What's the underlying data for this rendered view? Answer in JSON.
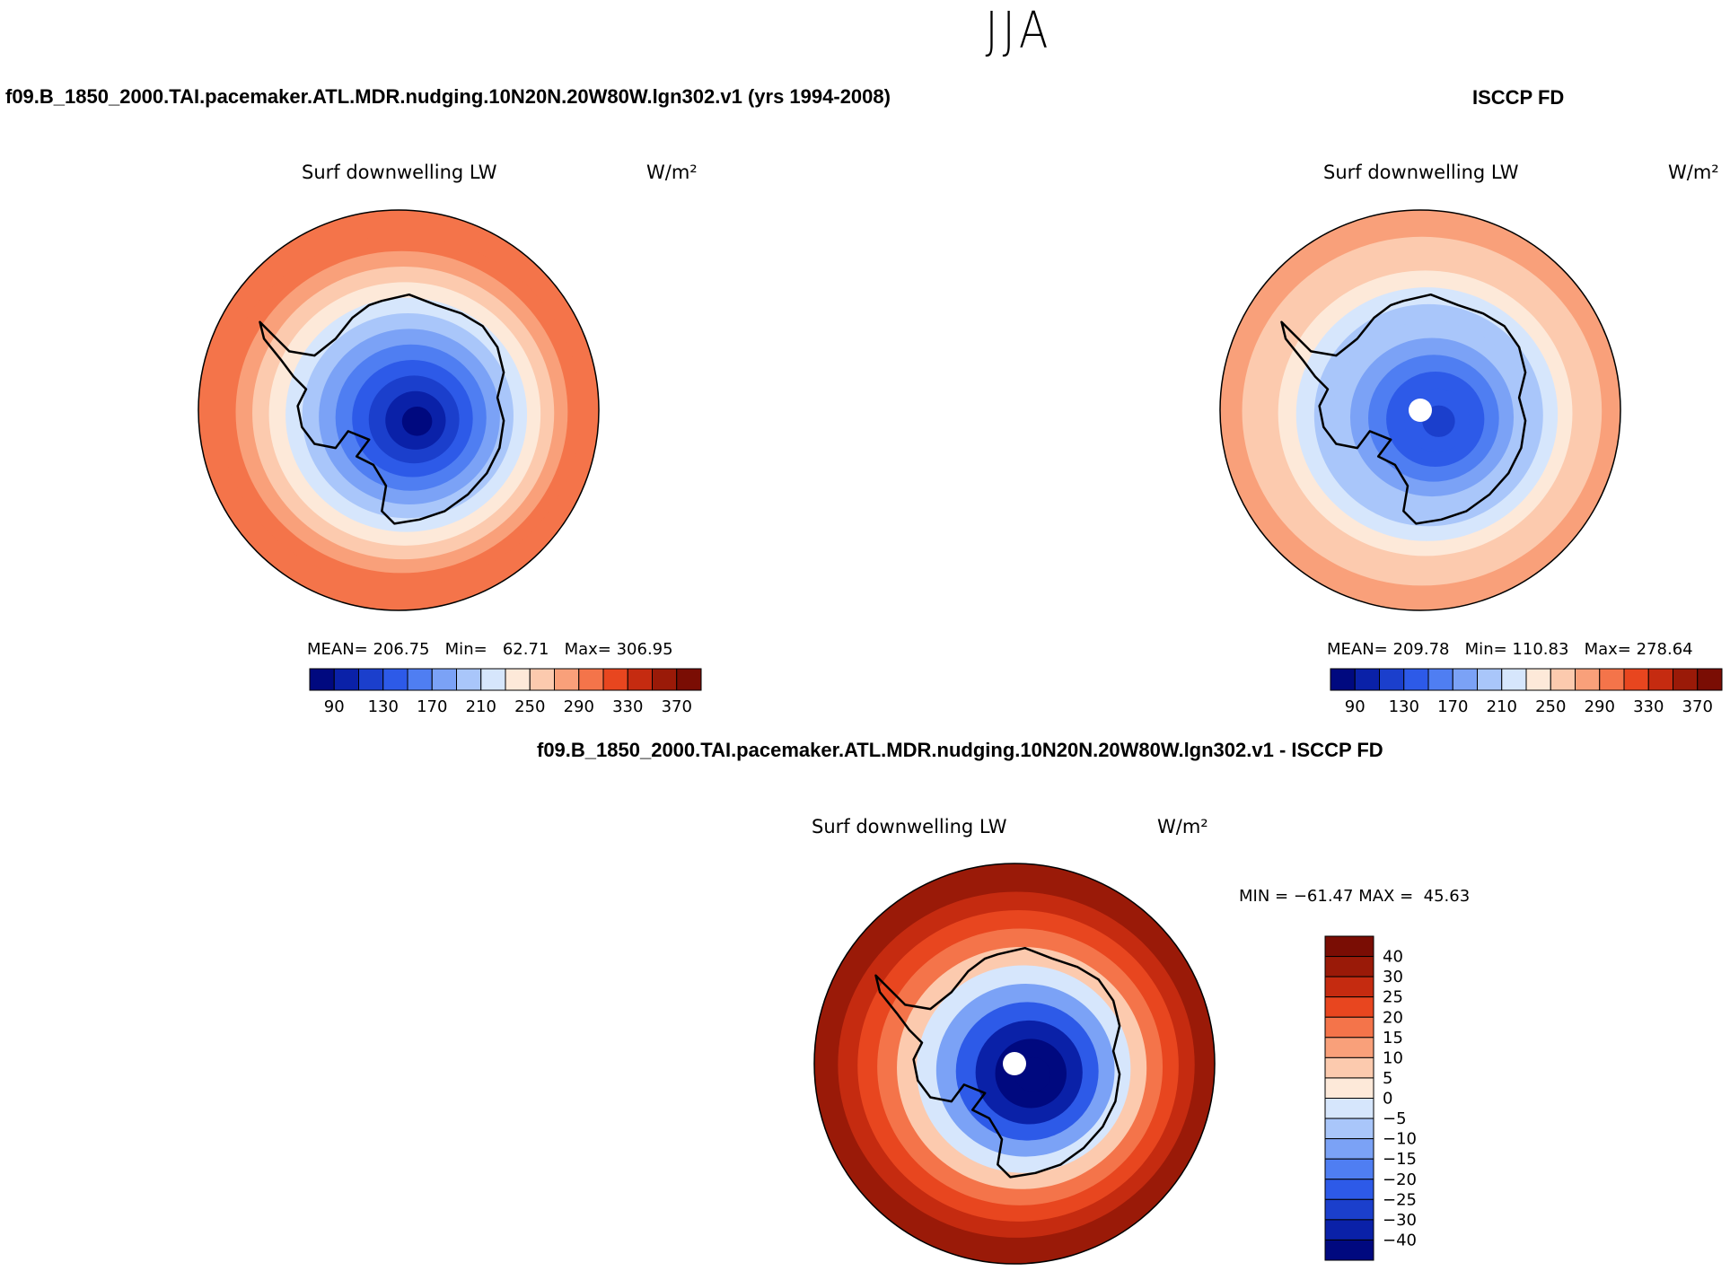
{
  "title": "JJA",
  "panels": {
    "left": {
      "case_title": "f09.B_1850_2000.TAI.pacemaker.ATL.MDR.nudging.10N20N.20W80W.lgn302.v1 (yrs 1994-2008)",
      "variable": "Surf downwelling LW",
      "units": "W/m²",
      "stats": {
        "mean_label": "MEAN=",
        "mean": "206.75",
        "min_label": "Min=",
        "min": "62.71",
        "max_label": "Max=",
        "max": "306.95"
      }
    },
    "right": {
      "case_title": "ISCCP FD",
      "variable": "Surf downwelling LW",
      "units": "W/m²",
      "stats": {
        "mean_label": "MEAN=",
        "mean": "209.78",
        "min_label": "Min=",
        "min": "110.83",
        "max_label": "Max=",
        "max": "278.64"
      }
    },
    "diff": {
      "case_title": "f09.B_1850_2000.TAI.pacemaker.ATL.MDR.nudging.10N20N.20W80W.lgn302.v1 - ISCCP FD",
      "variable": "Surf downwelling LW",
      "units": "W/m²",
      "stats": {
        "min_label": "MIN =",
        "min": "−61.47",
        "max_label": "MAX =",
        "max": "45.63"
      }
    }
  },
  "colors": {
    "abs_scale": [
      "#00097f",
      "#0a21a8",
      "#1b3fcc",
      "#2d5ae8",
      "#4f7ef2",
      "#7ba2f6",
      "#a9c6fa",
      "#d6e6fc",
      "#fde9d9",
      "#fccaae",
      "#f9a07a",
      "#f4744a",
      "#e8461f",
      "#c52b10",
      "#9a1a08",
      "#7a0d04"
    ],
    "diff_scale": [
      "#00097f",
      "#0a21a8",
      "#1b3fcc",
      "#2d5ae8",
      "#4f7ef2",
      "#7ba2f6",
      "#a9c6fa",
      "#d6e6fc",
      "#fde9d9",
      "#fccaae",
      "#f9a07a",
      "#f4744a",
      "#e8461f",
      "#c52b10",
      "#9a1a08",
      "#7a0d04"
    ],
    "land_outline": "#000000",
    "pole_hole": "#ffffff"
  },
  "chart_data": [
    {
      "type": "heatmap",
      "title": "f09.B_1850_2000.TAI.pacemaker.ATL.MDR.nudging.10N20N.20W80W.lgn302.v1 (yrs 1994-2008)",
      "projection": "south polar stereographic",
      "variable": "Surf downwelling LW",
      "units": "W/m²",
      "colorbar_levels": [
        90,
        110,
        130,
        150,
        170,
        190,
        210,
        230,
        250,
        270,
        290,
        310,
        330,
        350,
        370
      ],
      "colorbar_tick_labels": [
        "90",
        "130",
        "170",
        "210",
        "250",
        "290",
        "330",
        "370"
      ],
      "mean": 206.75,
      "min": 62.71,
      "max": 306.95,
      "rings_ocean_to_pole": [
        300,
        290,
        280,
        260,
        240,
        220,
        200,
        180,
        160,
        140,
        120,
        100,
        80
      ]
    },
    {
      "type": "heatmap",
      "title": "ISCCP FD",
      "projection": "south polar stereographic",
      "variable": "Surf downwelling LW",
      "units": "W/m²",
      "colorbar_levels": [
        90,
        110,
        130,
        150,
        170,
        190,
        210,
        230,
        250,
        270,
        290,
        310,
        330,
        350,
        370
      ],
      "colorbar_tick_labels": [
        "90",
        "130",
        "170",
        "210",
        "250",
        "290",
        "330",
        "370"
      ],
      "mean": 209.78,
      "min": 110.83,
      "max": 278.64,
      "rings_ocean_to_pole": [
        270,
        260,
        250,
        235,
        220,
        205,
        190,
        175,
        160,
        145,
        130,
        120
      ]
    },
    {
      "type": "heatmap",
      "title": "f09.B_1850_2000.TAI.pacemaker.ATL.MDR.nudging.10N20N.20W80W.lgn302.v1 - ISCCP FD",
      "projection": "south polar stereographic",
      "variable": "Surf downwelling LW",
      "units": "W/m²",
      "colorbar_levels": [
        -40,
        -30,
        -25,
        -20,
        -15,
        -10,
        -5,
        0,
        5,
        10,
        15,
        20,
        25,
        30,
        40
      ],
      "colorbar_tick_labels": [
        "40",
        "30",
        "25",
        "20",
        "15",
        "10",
        "5",
        "0",
        "−5",
        "−10",
        "−15",
        "−20",
        "−25",
        "−30",
        "−40"
      ],
      "min": -61.47,
      "max": 45.63,
      "rings_ocean_to_pole": [
        35,
        25,
        20,
        15,
        5,
        -5,
        -15,
        -25,
        -35,
        -45,
        -55
      ]
    }
  ]
}
